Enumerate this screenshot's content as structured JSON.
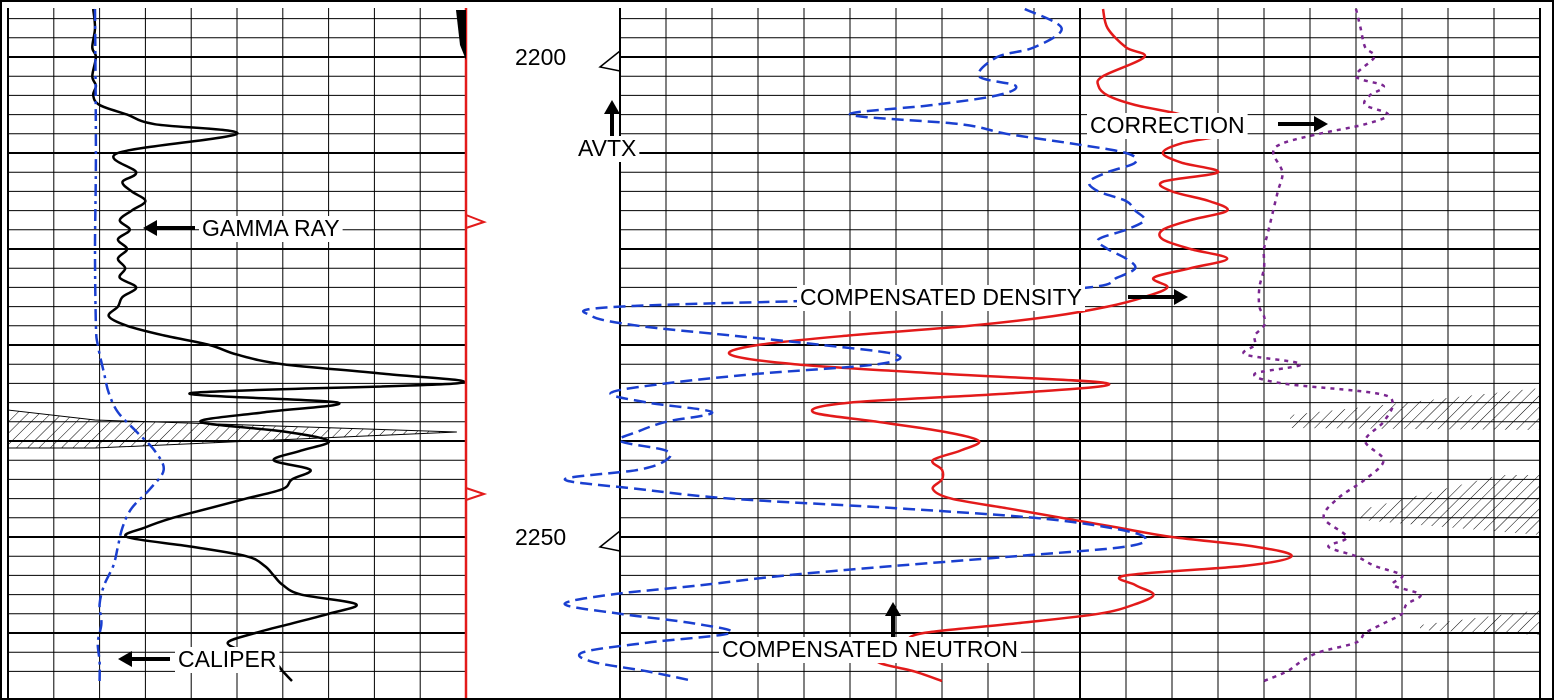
{
  "chart_data": {
    "type": "line",
    "title": "",
    "depth_axis": {
      "ylim": [
        2195,
        2265
      ],
      "grid_minor_step": 2,
      "grid_major_step": 10,
      "tick_labels": [
        2200,
        2250
      ]
    },
    "annotations": {
      "gamma_ray": "GAMMA RAY",
      "caliper": "CALIPER",
      "avtx": "AVTX",
      "correction": "CORRECTION",
      "compensated_density": "COMPENSATED DENSITY",
      "compensated_neutron": "COMPENSATED NEUTRON"
    },
    "series": [
      {
        "name": "GAMMA RAY",
        "track": 1,
        "color": "#000000",
        "dash": "solid",
        "depth": [
          2195,
          2197,
          2199,
          2200,
          2202,
          2203,
          2204,
          2205,
          2206,
          2207,
          2208,
          2210,
          2212,
          2213,
          2214,
          2215,
          2216,
          2217,
          2218,
          2219,
          2220,
          2221,
          2222,
          2223,
          2224,
          2225,
          2226,
          2227,
          2228,
          2229,
          2230,
          2231,
          2232,
          2233,
          2234,
          2235,
          2236,
          2237,
          2238,
          2239,
          2240,
          2241,
          2242,
          2243,
          2244,
          2245,
          2246,
          2247,
          2248,
          2249,
          2250,
          2251,
          2252,
          2253,
          2254,
          2255,
          2256,
          2257,
          2258,
          2259,
          2260,
          2261,
          2262,
          2263,
          2264,
          2265
        ],
        "values": [
          0.93,
          0.95,
          0.92,
          0.96,
          0.92,
          0.96,
          0.93,
          1.0,
          1.3,
          1.6,
          2.5,
          1.2,
          1.4,
          1.25,
          1.35,
          1.5,
          1.35,
          1.22,
          1.33,
          1.2,
          1.3,
          1.2,
          1.28,
          1.22,
          1.4,
          1.25,
          1.2,
          1.1,
          1.3,
          1.7,
          2.2,
          2.5,
          3.0,
          4.1,
          4.9,
          2.0,
          3.6,
          2.8,
          2.1,
          3.0,
          3.5,
          3.2,
          2.9,
          3.3,
          3.1,
          3.0,
          2.6,
          2.2,
          1.8,
          1.5,
          1.3,
          2.0,
          2.6,
          2.8,
          2.9,
          3.0,
          3.2,
          3.8,
          3.5,
          3.1,
          2.7,
          2.4,
          2.6,
          2.9,
          3.0,
          3.1
        ]
      },
      {
        "name": "CALIPER",
        "track": 1,
        "color": "#1a3fd0",
        "dash": "dashdot",
        "depth": [
          2195,
          2210,
          2220,
          2228,
          2230,
          2233,
          2235,
          2237,
          2239,
          2241,
          2243,
          2245,
          2247,
          2249,
          2251,
          2253,
          2255,
          2257,
          2259,
          2261,
          2263,
          2265
        ],
        "values": [
          0.95,
          0.96,
          0.95,
          0.96,
          0.98,
          1.05,
          1.1,
          1.2,
          1.4,
          1.6,
          1.7,
          1.55,
          1.35,
          1.25,
          1.2,
          1.15,
          1.05,
          1.0,
          1.02,
          0.98,
          1.0,
          1.0
        ]
      },
      {
        "name": "COMPENSATED DENSITY",
        "track": 2,
        "color": "#e31a1a",
        "dash": "solid",
        "depth": [
          2195,
          2197,
          2199,
          2200,
          2202,
          2203,
          2204,
          2205,
          2206,
          2207,
          2208,
          2209,
          2210,
          2211,
          2212,
          2213,
          2214,
          2215,
          2216,
          2217,
          2218,
          2219,
          2220,
          2221,
          2222,
          2223,
          2224,
          2225,
          2226,
          2227,
          2228,
          2229,
          2230,
          2231,
          2232,
          2233,
          2234,
          2235,
          2236,
          2237,
          2238,
          2239,
          2240,
          2241,
          2242,
          2243,
          2244,
          2245,
          2246,
          2247,
          2248,
          2249,
          2250,
          2251,
          2252,
          2253,
          2254,
          2255,
          2256,
          2257,
          2258,
          2259,
          2260,
          2261,
          2262,
          2263,
          2264,
          2265
        ],
        "values": [
          5.25,
          5.3,
          5.5,
          5.7,
          5.25,
          5.2,
          5.3,
          5.6,
          6.1,
          6.3,
          6.6,
          6.1,
          5.9,
          6.1,
          6.5,
          5.9,
          6.0,
          6.4,
          6.6,
          6.2,
          5.9,
          5.9,
          6.2,
          6.6,
          6.2,
          5.8,
          5.95,
          5.7,
          5.3,
          4.7,
          3.8,
          2.5,
          1.5,
          1.2,
          1.9,
          3.5,
          5.3,
          4.3,
          2.5,
          2.1,
          2.8,
          3.5,
          3.9,
          3.7,
          3.4,
          3.5,
          3.5,
          3.4,
          3.6,
          4.2,
          4.8,
          5.4,
          6.0,
          6.9,
          7.3,
          6.8,
          5.5,
          5.6,
          5.8,
          5.6,
          5.2,
          4.3,
          3.3,
          3.1,
          3.0,
          2.8,
          3.2,
          3.5
        ]
      },
      {
        "name": "COMPENSATED NEUTRON",
        "track": 2,
        "color": "#1a3fd0",
        "dash": "dashed",
        "depth": [
          2195,
          2197,
          2199,
          2200,
          2202,
          2203,
          2204,
          2205,
          2206,
          2207,
          2208,
          2209,
          2210,
          2211,
          2212,
          2213,
          2214,
          2215,
          2216,
          2217,
          2218,
          2219,
          2220,
          2221,
          2222,
          2223,
          2224,
          2225,
          2226,
          2227,
          2228,
          2229,
          2230,
          2231,
          2232,
          2233,
          2234,
          2235,
          2236,
          2237,
          2238,
          2239,
          2240,
          2241,
          2242,
          2243,
          2244,
          2245,
          2246,
          2247,
          2248,
          2249,
          2250,
          2251,
          2252,
          2253,
          2254,
          2255,
          2256,
          2257,
          2258,
          2259,
          2260,
          2261,
          2262,
          2263,
          2264,
          2265
        ],
        "values": [
          4.4,
          4.8,
          4.5,
          4.1,
          3.9,
          4.3,
          4.1,
          3.4,
          2.5,
          3.7,
          4.2,
          4.9,
          5.5,
          5.6,
          5.3,
          5.1,
          5.2,
          5.5,
          5.6,
          5.7,
          5.5,
          5.2,
          5.3,
          5.5,
          5.6,
          5.4,
          5.1,
          3.5,
          0.0,
          -0.3,
          0.2,
          1.2,
          2.2,
          3.0,
          2.8,
          1.5,
          0.5,
          -0.1,
          0.3,
          1.0,
          0.5,
          0.2,
          0.0,
          0.5,
          0.5,
          0.2,
          -0.6,
          0.2,
          1.2,
          3.0,
          4.5,
          5.3,
          5.7,
          5.5,
          4.3,
          3.0,
          1.8,
          0.9,
          -0.1,
          -0.6,
          0.0,
          0.8,
          1.2,
          0.3,
          -0.4,
          -0.3,
          0.3,
          0.8
        ]
      },
      {
        "name": "CORRECTION",
        "track": 2,
        "color": "#7a2690",
        "dash": "dotted",
        "depth": [
          2195,
          2197,
          2199,
          2200,
          2202,
          2203,
          2204,
          2205,
          2206,
          2207,
          2208,
          2209,
          2210,
          2212,
          2214,
          2216,
          2218,
          2220,
          2222,
          2224,
          2226,
          2227,
          2228,
          2229,
          2230,
          2231,
          2232,
          2233,
          2234,
          2235,
          2236,
          2238,
          2240,
          2242,
          2244,
          2246,
          2248,
          2250,
          2251,
          2252,
          2253,
          2254,
          2255,
          2256,
          2257,
          2258,
          2259,
          2260,
          2261,
          2262,
          2263,
          2264,
          2265
        ],
        "values": [
          8.0,
          8.05,
          8.1,
          8.2,
          8.0,
          8.3,
          8.15,
          8.1,
          8.35,
          8.1,
          7.6,
          7.2,
          7.1,
          7.2,
          7.15,
          7.1,
          7.05,
          7.0,
          7.0,
          6.95,
          6.95,
          7.0,
          7.0,
          6.9,
          6.9,
          6.8,
          7.4,
          6.9,
          7.2,
          8.2,
          8.4,
          8.3,
          8.1,
          8.3,
          8.1,
          7.8,
          7.65,
          7.9,
          7.7,
          8.0,
          8.2,
          8.5,
          8.4,
          8.7,
          8.55,
          8.5,
          8.3,
          8.1,
          8.0,
          7.6,
          7.4,
          7.25,
          7.0
        ]
      }
    ]
  }
}
